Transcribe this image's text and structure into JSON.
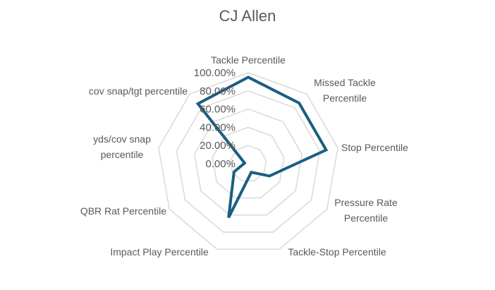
{
  "chart_data": {
    "type": "radar",
    "title": "CJ Allen",
    "categories": [
      "Tackle Percentile",
      "Missed Tackle Percentile",
      "Stop Percentile",
      "Pressure Rate Percentile",
      "Tackle-Stop Percentile",
      "Impact Play Percentile",
      "QBR Rat Percentile",
      "yds/cov snap percentile",
      "cov snap/tgt percentile"
    ],
    "values": [
      0.95,
      0.87,
      0.87,
      0.27,
      0.1,
      0.63,
      0.18,
      0.04,
      0.86
    ],
    "rlim": [
      0,
      1
    ],
    "tick_labels": [
      "0.00%",
      "20.00%",
      "40.00%",
      "60.00%",
      "80.00%",
      "100.00%"
    ],
    "grid": true,
    "legend": "none",
    "colors": {
      "series": "#1b5e80",
      "grid": "#d9d9d9",
      "text": "#595959"
    }
  }
}
